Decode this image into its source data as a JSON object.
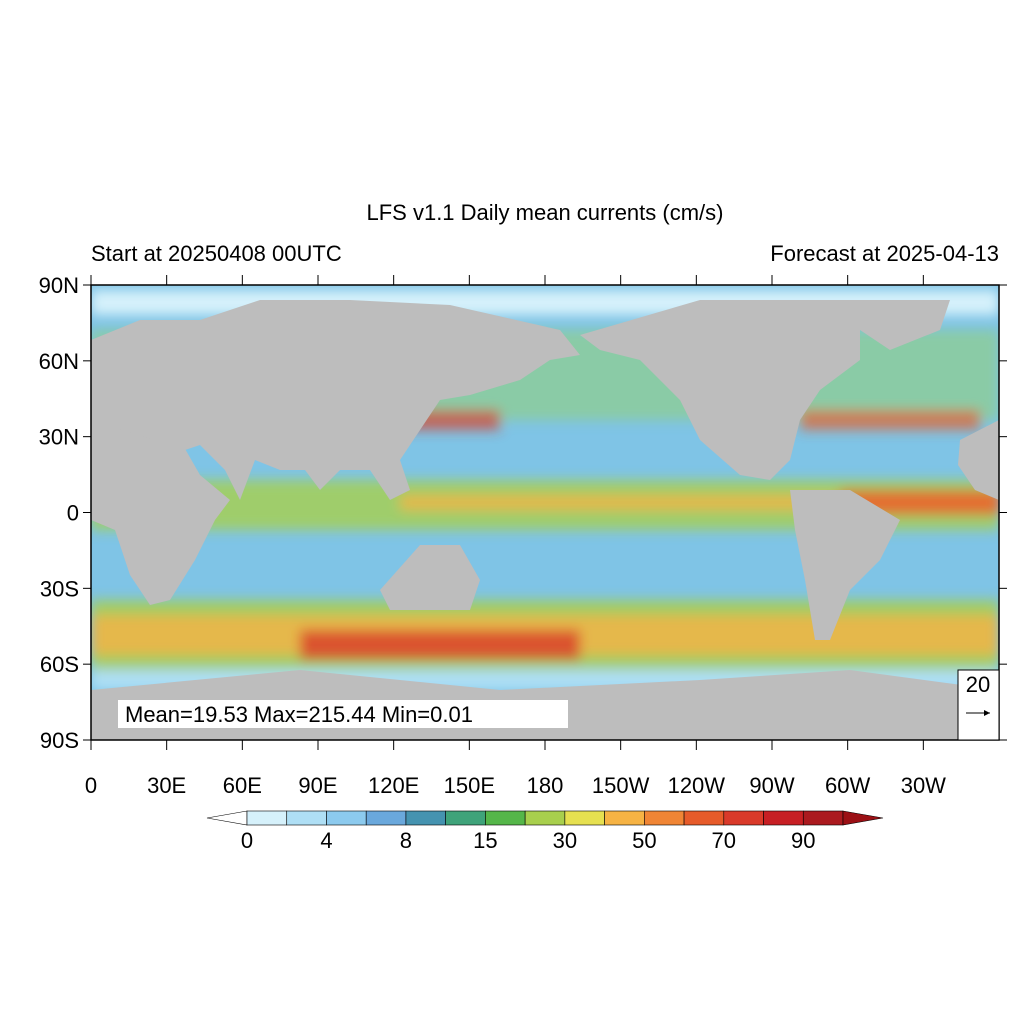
{
  "title": "LFS v1.1 Daily mean currents (cm/s)",
  "left_subtitle": "Start at 20250408 00UTC",
  "right_subtitle": "Forecast at 2025-04-13",
  "stats": "Mean=19.53  Max=215.44  Min=0.01",
  "reference_vector": "20",
  "lat_ticks": [
    {
      "value": 90,
      "label": "90N"
    },
    {
      "value": 60,
      "label": "60N"
    },
    {
      "value": 30,
      "label": "30N"
    },
    0,
    {
      "value": -30,
      "label": "30S"
    },
    {
      "value": -60,
      "label": "60S"
    },
    {
      "value": -90,
      "label": "90S"
    }
  ],
  "lon_ticks": [
    0,
    {
      "value": 30,
      "label": "30E"
    },
    {
      "value": 60,
      "label": "60E"
    },
    {
      "value": 90,
      "label": "90E"
    },
    {
      "value": 120,
      "label": "120E"
    },
    {
      "value": 150,
      "label": "150E"
    },
    180,
    {
      "value": 210,
      "label": "150W"
    },
    {
      "value": 240,
      "label": "120W"
    },
    {
      "value": 270,
      "label": "90W"
    },
    {
      "value": 300,
      "label": "60W"
    },
    {
      "value": 330,
      "label": "30W"
    }
  ],
  "colorbar": {
    "labels": [
      0,
      4,
      8,
      15,
      30,
      50,
      70,
      90
    ],
    "colors": [
      "#d6f1fb",
      "#afdff5",
      "#8ccaee",
      "#6aa8dc",
      "#4593b0",
      "#3fa37a",
      "#55b649",
      "#a8cf4d",
      "#e6e050",
      "#f6b344",
      "#f08535",
      "#e65b2a",
      "#d93a2a",
      "#c71f24",
      "#ab1a1f"
    ],
    "under_color": "#ffffff",
    "over_color": "#9b1015"
  }
}
